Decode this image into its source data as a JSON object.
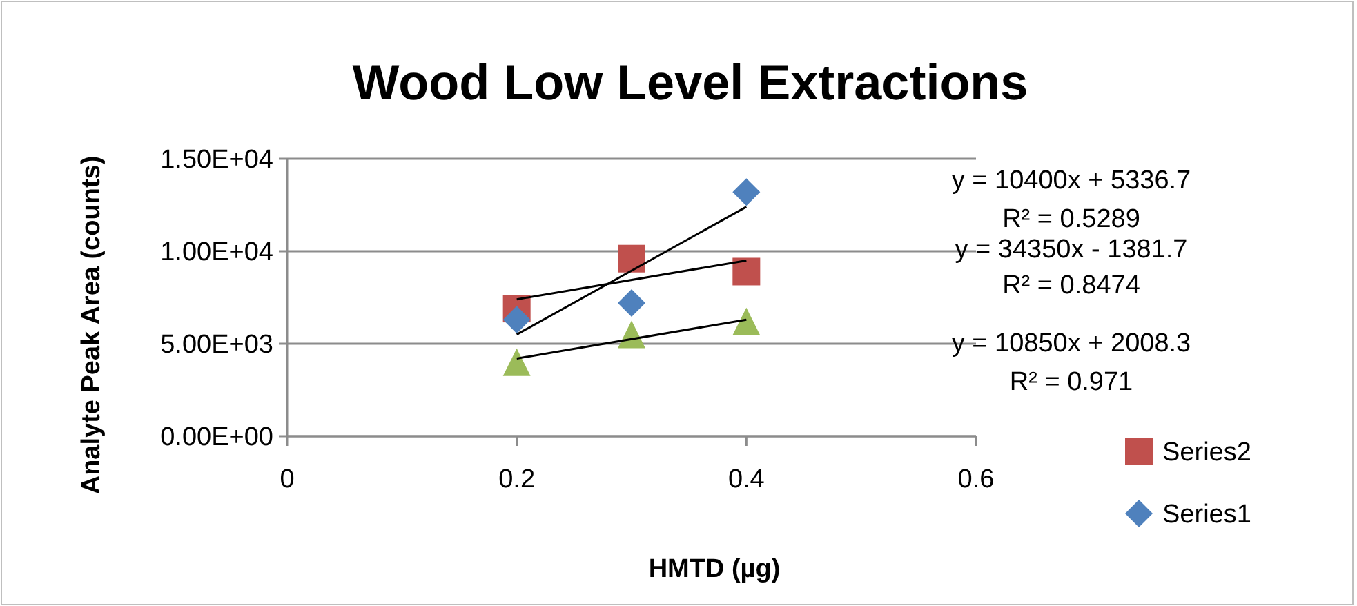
{
  "chart_data": {
    "type": "scatter",
    "title": "Wood Low Level Extractions",
    "xlabel": "HMTD (µg)",
    "ylabel": "Analyte Peak Area (counts)",
    "xlim": [
      0,
      0.6
    ],
    "xticks": [
      0,
      0.2,
      0.4,
      0.6
    ],
    "ylim": [
      0,
      15000
    ],
    "yticks": [
      {
        "value": 0,
        "label": "0.00E+00"
      },
      {
        "value": 5000,
        "label": "5.00E+03"
      },
      {
        "value": 10000,
        "label": "1.00E+04"
      },
      {
        "value": 15000,
        "label": "1.50E+04"
      }
    ],
    "grid": "y",
    "legend": "bottom right",
    "series": [
      {
        "name": "Series2",
        "color": "#c0504d",
        "marker": "square",
        "x": [
          0.2,
          0.3,
          0.4
        ],
        "values": [
          6900,
          9600,
          8900
        ]
      },
      {
        "name": "Series1",
        "color": "#4f81bd",
        "marker": "diamond",
        "x": [
          0.2,
          0.3,
          0.4
        ],
        "values": [
          6300,
          7200,
          13200
        ]
      },
      {
        "color": "#9bbb59",
        "marker": "triangle",
        "x": [
          0.2,
          0.3,
          0.4
        ],
        "values": [
          4000,
          5500,
          6200
        ]
      },
      {
        "type": "line",
        "color": "#000000",
        "x": [
          0.2,
          0.4
        ],
        "values": [
          7400,
          9500
        ]
      },
      {
        "type": "line",
        "color": "#000000",
        "x": [
          0.2,
          0.4
        ],
        "values": [
          5500,
          12400
        ]
      },
      {
        "type": "line",
        "color": "#000000",
        "x": [
          0.2,
          0.4
        ],
        "values": [
          4200,
          6300
        ]
      }
    ],
    "annotations": [
      "y = 10400x + 5336.7",
      "R² = 0.5289",
      "y = 34350x - 1381.7",
      "R² = 0.8474",
      "y = 10850x + 2008.3",
      "R² = 0.971"
    ]
  }
}
